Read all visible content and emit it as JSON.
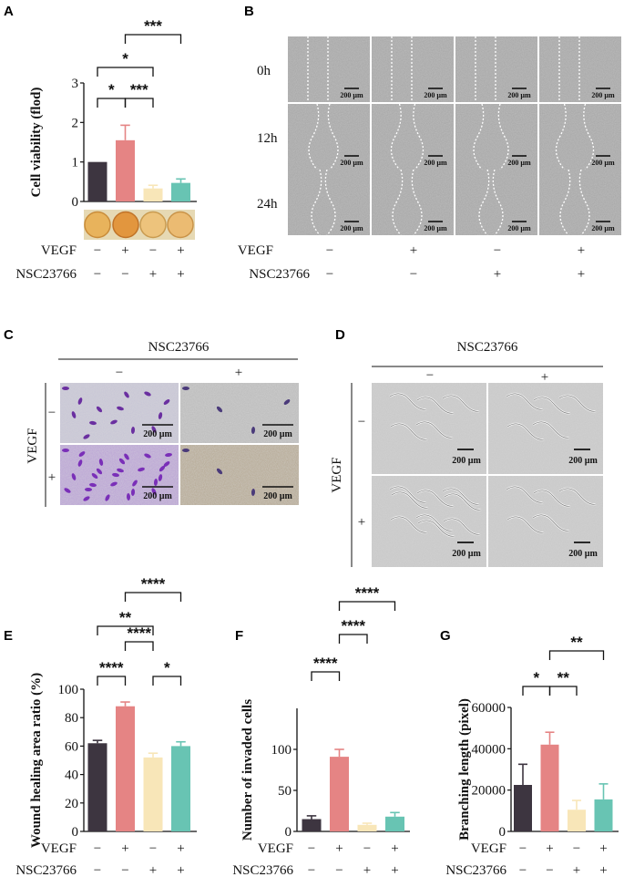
{
  "panel_labels": {
    "a": "A",
    "b": "B",
    "c": "C",
    "d": "D",
    "e": "E",
    "f": "F",
    "g": "G"
  },
  "row_labels": {
    "vegf": "VEGF",
    "nsc": "NSC23766"
  },
  "conditions": {
    "vegf": [
      "−",
      "+",
      "−",
      "+"
    ],
    "nsc": [
      "−",
      "−",
      "+",
      "+"
    ]
  },
  "bar_colors": [
    "#3d3540",
    "#e58484",
    "#f8e6b8",
    "#68c4b3"
  ],
  "panel_b": {
    "timepoints": [
      "0h",
      "12h",
      "24h"
    ],
    "scale_bar": "200 µm"
  },
  "panel_c": {
    "header": "NSC23766",
    "col_signs": [
      "−",
      "+"
    ],
    "side_label": "VEGF",
    "row_signs": [
      "−",
      "+"
    ],
    "scale_bar": "200 µm"
  },
  "panel_d": {
    "header": "NSC23766",
    "col_signs": [
      "−",
      "+"
    ],
    "side_label": "VEGF",
    "row_signs": [
      "−",
      "+"
    ],
    "scale_bar": "200 µm"
  },
  "chart_data": [
    {
      "panel": "A",
      "type": "bar",
      "ylabel": "Cell viability (flod)",
      "ylim": [
        0,
        3
      ],
      "yticks": [
        0,
        1,
        2,
        3
      ],
      "values": [
        1.0,
        1.55,
        0.33,
        0.47
      ],
      "errors": [
        0.0,
        0.38,
        0.08,
        0.1
      ],
      "significance": [
        {
          "from": 0,
          "to": 1,
          "label": "*"
        },
        {
          "from": 1,
          "to": 2,
          "label": "***"
        },
        {
          "from": 0,
          "to": 2,
          "label": "*"
        },
        {
          "from": 1,
          "to": 3,
          "label": "***"
        }
      ]
    },
    {
      "panel": "E",
      "type": "bar",
      "ylabel": "Wound healing area ratio (%)",
      "ylim": [
        0,
        100
      ],
      "yticks": [
        0,
        20,
        40,
        60,
        80,
        100
      ],
      "values": [
        62,
        88,
        52,
        60
      ],
      "errors": [
        2,
        3,
        3,
        3
      ],
      "significance": [
        {
          "from": 0,
          "to": 1,
          "label": "****"
        },
        {
          "from": 2,
          "to": 3,
          "label": "*"
        },
        {
          "from": 1,
          "to": 2,
          "label": "****"
        },
        {
          "from": 0,
          "to": 2,
          "label": "**"
        },
        {
          "from": 1,
          "to": 3,
          "label": "****"
        }
      ]
    },
    {
      "panel": "F",
      "type": "bar",
      "ylabel": "Number of invaded cells",
      "ylim": [
        0,
        150
      ],
      "yticks": [
        0,
        50,
        100
      ],
      "values": [
        15,
        91,
        8,
        18
      ],
      "errors": [
        4,
        9,
        2,
        5
      ],
      "significance": [
        {
          "from": 0,
          "to": 1,
          "label": "****"
        },
        {
          "from": 1,
          "to": 2,
          "label": "****"
        },
        {
          "from": 1,
          "to": 3,
          "label": "****"
        }
      ]
    },
    {
      "panel": "G",
      "type": "bar",
      "ylabel": "Branching length (pixel)",
      "ylim": [
        0,
        60000
      ],
      "yticks": [
        0,
        20000,
        40000,
        60000
      ],
      "values": [
        22500,
        42000,
        10500,
        15500
      ],
      "errors": [
        10000,
        6000,
        4500,
        7500
      ],
      "significance": [
        {
          "from": 0,
          "to": 1,
          "label": "*"
        },
        {
          "from": 1,
          "to": 2,
          "label": "**"
        },
        {
          "from": 1,
          "to": 3,
          "label": "**"
        }
      ]
    }
  ]
}
